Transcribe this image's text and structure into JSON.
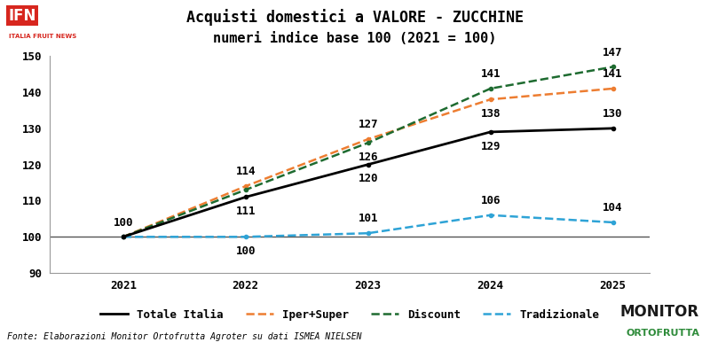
{
  "chart_data": {
    "type": "line",
    "title": "Acquisti domestici a VALORE - ZUCCHINE",
    "subtitle": "numeri indice base 100 (2021 = 100)",
    "categories": [
      "2021",
      "2022",
      "2023",
      "2024",
      "2025"
    ],
    "series": [
      {
        "name": "Totale Italia",
        "color": "#000000",
        "line_style": "solid",
        "values": [
          100,
          111,
          120,
          129,
          130
        ],
        "value_labels": [
          "100",
          "111",
          "120",
          "129",
          "130"
        ]
      },
      {
        "name": "Iper+Super",
        "color": "#ED7D31",
        "line_style": "dashed",
        "values": [
          100,
          114,
          127,
          138,
          141
        ],
        "value_labels": [
          null,
          "114",
          "127",
          "138",
          "141"
        ]
      },
      {
        "name": "Discount",
        "color": "#1E6B30",
        "line_style": "dashed",
        "values": [
          100,
          113,
          126,
          141,
          147
        ],
        "value_labels": [
          null,
          null,
          "126",
          "141",
          "147"
        ]
      },
      {
        "name": "Tradizionale",
        "color": "#2EA3D6",
        "line_style": "dashed",
        "values": [
          100,
          100,
          101,
          106,
          104
        ],
        "value_labels": [
          null,
          "100",
          "101",
          "106",
          "104"
        ]
      }
    ],
    "ylim": [
      90,
      150
    ],
    "yticks": [
      90,
      100,
      110,
      120,
      130,
      140,
      150
    ],
    "reference_line": 100,
    "grid": false,
    "legend": "upper center",
    "data_labels": true,
    "annotations": [
      "Fonte: Elaborazioni Monitor Ortofrutta Agroter su dati ISMEA NIELSEN",
      "IFN",
      "ITALIA FRUIT NEWS",
      "MONITOR",
      "ORTOFRUTTA"
    ]
  }
}
